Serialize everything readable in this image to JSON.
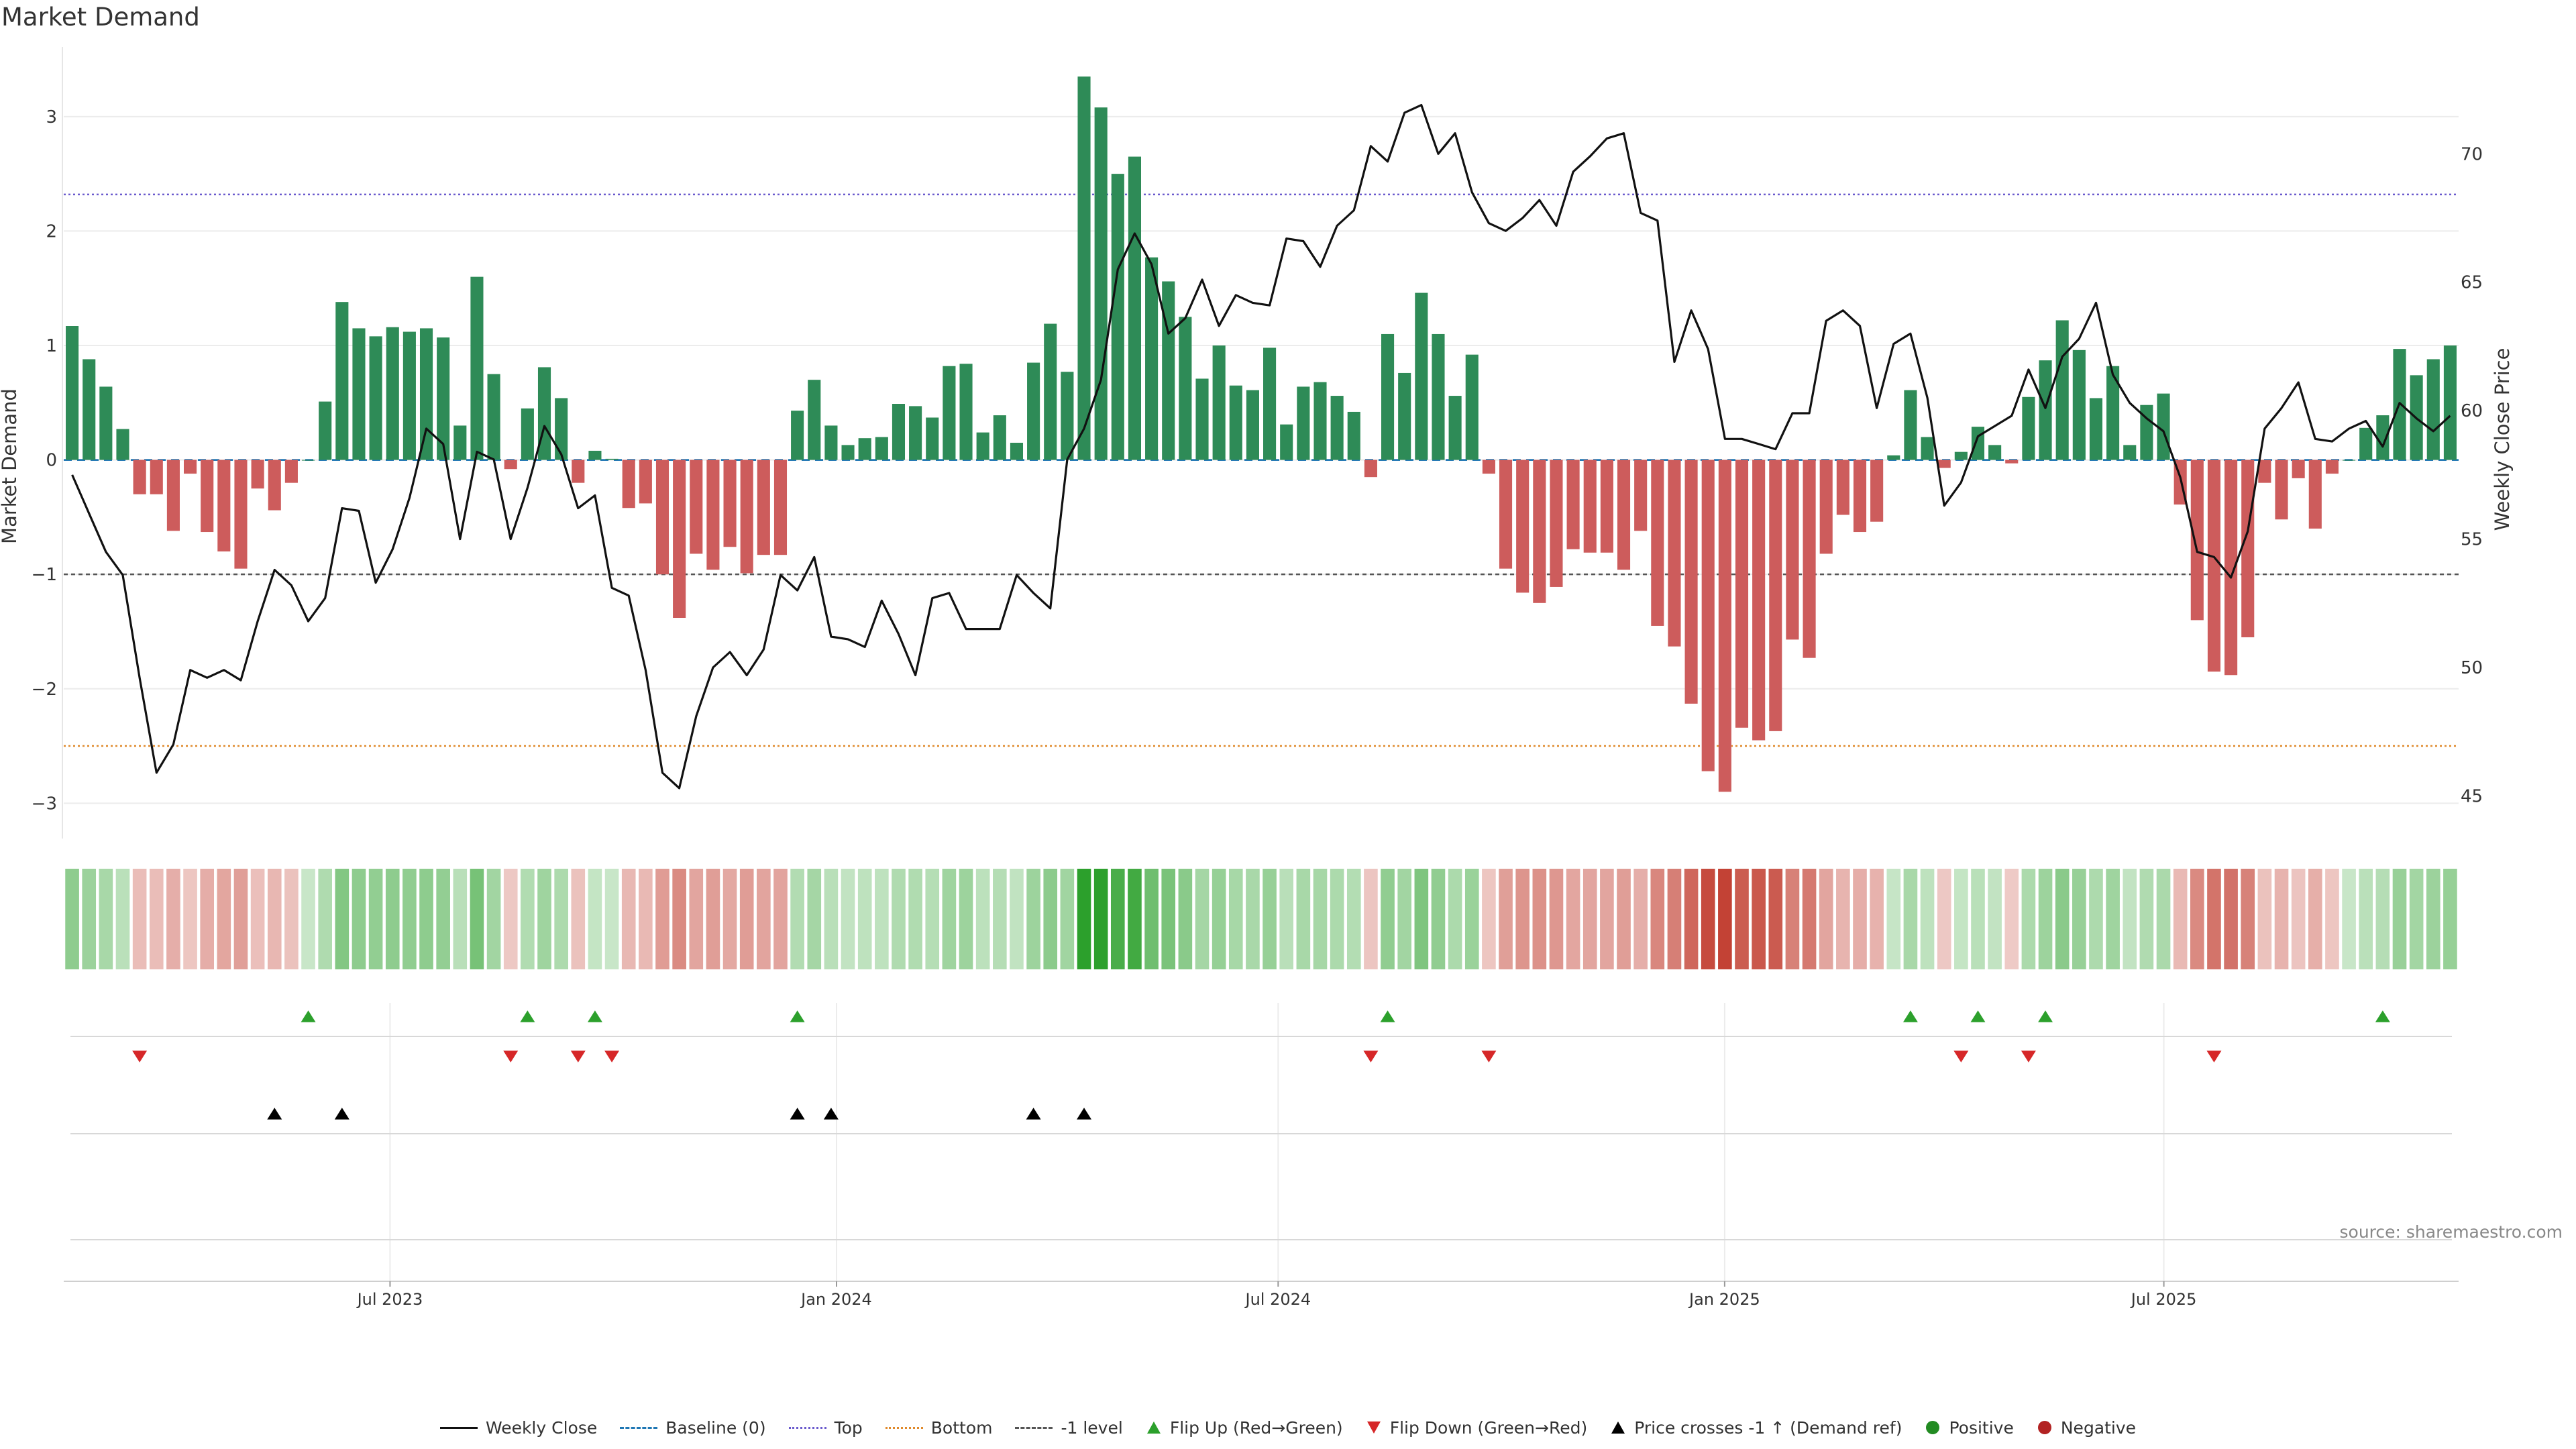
{
  "page_title": "Market Demand",
  "source": "source: sharemaestro.com",
  "colors": {
    "positive": "#2e8b57",
    "negative": "#cd5c5c",
    "price": "#111111",
    "baseline": "#1f77b4",
    "top": "#6a5acd",
    "bottom": "#e08a2c",
    "minus1": "#555555",
    "flip_up": "#2ca02c",
    "flip_down": "#d62728",
    "cross": "#000000",
    "heat_pos": "#2ca02c",
    "heat_neg": "#c0392b"
  },
  "chart_data": {
    "type": "bar",
    "title": "Market Demand",
    "ylabel_left": "Market Demand",
    "ylabel_right": "Weekly Close Price",
    "ylim_left": [
      -3.25,
      3.55
    ],
    "ylim_right": [
      43.6,
      73.9
    ],
    "yticks_left": [
      3,
      2,
      1,
      0,
      -1,
      -2,
      -3
    ],
    "ytick_labels_left": [
      "3",
      "2",
      "1",
      "0",
      "−1",
      "−2",
      "−3"
    ],
    "yticks_right": [
      70,
      65,
      60,
      55,
      50,
      45
    ],
    "ytick_labels_right": [
      "70",
      "65",
      "60",
      "55",
      "50",
      "45"
    ],
    "x_start": "2023-02-20",
    "x_end": "2025-10-27",
    "xticks": [
      {
        "date": "2023-07-01",
        "label": "Jul 2023"
      },
      {
        "date": "2024-01-01",
        "label": "Jan 2024"
      },
      {
        "date": "2024-07-01",
        "label": "Jul 2024"
      },
      {
        "date": "2025-01-01",
        "label": "Jan 2025"
      },
      {
        "date": "2025-07-01",
        "label": "Jul 2025"
      }
    ],
    "reference_lines": [
      {
        "name": "Top",
        "value": 2.32
      },
      {
        "name": "Bottom",
        "value": -2.5
      },
      {
        "name": "-1 level",
        "value": -1.0
      },
      {
        "name": "Baseline (0)",
        "value": 0
      }
    ],
    "series": [
      {
        "name": "Market Demand",
        "values": [
          1.17,
          0.88,
          0.64,
          0.27,
          -0.3,
          -0.3,
          -0.62,
          -0.12,
          -0.63,
          -0.8,
          -0.95,
          -0.25,
          -0.44,
          -0.2,
          0.0,
          0.51,
          1.38,
          1.15,
          1.08,
          1.16,
          1.12,
          1.15,
          1.07,
          0.3,
          1.6,
          0.75,
          -0.08,
          0.45,
          0.81,
          0.54,
          -0.2,
          0.08,
          0.01,
          -0.42,
          -0.38,
          -1.0,
          -1.38,
          -0.82,
          -0.96,
          -0.76,
          -0.99,
          -0.83,
          -0.83,
          0.43,
          0.7,
          0.3,
          0.13,
          0.19,
          0.2,
          0.49,
          0.47,
          0.37,
          0.82,
          0.84,
          0.24,
          0.39,
          0.15,
          0.85,
          1.19,
          0.77,
          3.35,
          3.08,
          2.5,
          2.65,
          1.77,
          1.56,
          1.25,
          0.71,
          1.0,
          0.65,
          0.61,
          0.98,
          0.31,
          0.64,
          0.68,
          0.56,
          0.42,
          -0.15,
          1.1,
          0.76,
          1.46,
          1.1,
          0.56,
          0.92,
          -0.12,
          -0.95,
          -1.16,
          -1.25,
          -1.11,
          -0.78,
          -0.81,
          -0.81,
          -0.96,
          -0.62,
          -1.45,
          -1.63,
          -2.13,
          -2.72,
          -2.9,
          -2.34,
          -2.45,
          -2.37,
          -1.57,
          -1.73,
          -0.82,
          -0.48,
          -0.63,
          -0.54,
          0.04,
          0.61,
          0.2,
          -0.07,
          0.07,
          0.29,
          0.13,
          -0.03,
          0.55,
          0.87,
          1.22,
          0.96,
          0.54,
          0.82,
          0.13,
          0.48,
          0.58,
          -0.39,
          -1.4,
          -1.85,
          -1.88,
          -1.55,
          -0.2,
          -0.52,
          -0.16,
          -0.6,
          -0.12,
          0.0,
          0.28,
          0.39,
          0.97,
          0.74,
          0.88,
          1.0
        ]
      },
      {
        "name": "Weekly Close",
        "values": [
          57.5,
          56.0,
          54.5,
          53.6,
          49.6,
          45.9,
          47.0,
          49.9,
          49.6,
          49.9,
          49.5,
          51.8,
          53.8,
          53.2,
          51.8,
          52.7,
          56.2,
          56.1,
          53.3,
          54.6,
          56.6,
          59.3,
          58.7,
          55.0,
          58.4,
          58.1,
          55.0,
          57.0,
          59.4,
          58.3,
          56.2,
          56.7,
          53.1,
          52.8,
          49.9,
          45.9,
          45.3,
          48.1,
          50.0,
          50.6,
          49.7,
          50.7,
          53.6,
          53.0,
          54.3,
          51.2,
          51.1,
          50.8,
          52.6,
          51.3,
          49.7,
          52.7,
          52.9,
          51.5,
          51.5,
          51.5,
          53.6,
          52.9,
          52.3,
          58.1,
          59.3,
          61.2,
          65.5,
          66.9,
          65.7,
          63.0,
          63.6,
          65.1,
          63.3,
          64.5,
          64.2,
          64.1,
          66.7,
          66.6,
          65.6,
          67.2,
          67.8,
          70.3,
          69.7,
          71.6,
          71.9,
          70.0,
          70.8,
          68.5,
          67.3,
          67.0,
          67.5,
          68.2,
          67.2,
          69.3,
          69.9,
          70.6,
          70.8,
          67.7,
          67.4,
          61.9,
          63.9,
          62.4,
          58.9,
          58.9,
          58.7,
          58.5,
          59.9,
          59.9,
          63.5,
          63.9,
          63.3,
          60.1,
          62.6,
          63.0,
          60.5,
          56.3,
          57.2,
          59.0,
          59.4,
          59.8,
          61.6,
          60.1,
          62.1,
          62.8,
          64.2,
          61.4,
          60.3,
          59.7,
          59.2,
          57.4,
          54.5,
          54.3,
          53.5,
          55.3,
          59.3,
          60.1,
          61.1,
          58.9,
          58.8,
          59.3,
          59.6,
          58.6,
          60.3,
          59.7,
          59.2,
          59.8
        ]
      }
    ],
    "flip_up_indices": [
      14,
      27,
      31,
      43,
      78,
      109,
      113,
      117,
      137
    ],
    "flip_down_indices": [
      4,
      26,
      30,
      32,
      77,
      84,
      112,
      116,
      127
    ],
    "price_cross_indices": [
      12,
      16,
      43,
      45,
      57,
      60
    ]
  },
  "legend": [
    {
      "label": "Weekly Close",
      "kind": "line-solid",
      "color": "#111111"
    },
    {
      "label": "Baseline (0)",
      "kind": "line-dashed",
      "color": "#1f77b4"
    },
    {
      "label": "Top",
      "kind": "line-dotted",
      "color": "#6a5acd"
    },
    {
      "label": "Bottom",
      "kind": "line-dotted",
      "color": "#e08a2c"
    },
    {
      "label": "-1 level",
      "kind": "line-dashed",
      "color": "#555555"
    },
    {
      "label": "Flip Up (Red→Green)",
      "kind": "triangle-up",
      "color": "#2ca02c"
    },
    {
      "label": "Flip Down (Green→Red)",
      "kind": "triangle-down",
      "color": "#d62728"
    },
    {
      "label": "Price crosses -1 ↑ (Demand ref)",
      "kind": "triangle-up",
      "color": "#000000"
    },
    {
      "label": "Positive",
      "kind": "circle",
      "color": "#228b22"
    },
    {
      "label": "Negative",
      "kind": "circle",
      "color": "#b22222"
    }
  ]
}
